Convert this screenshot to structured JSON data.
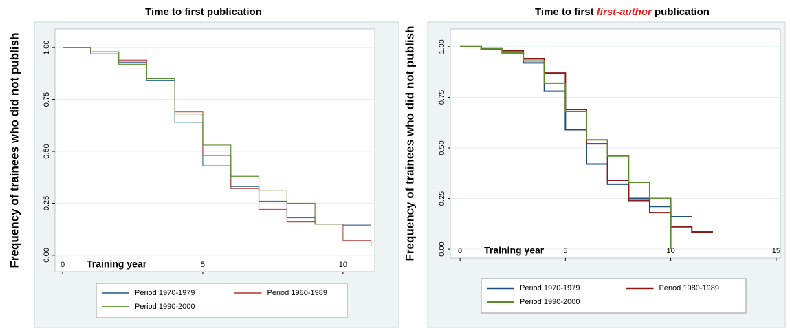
{
  "chart_data": [
    {
      "type": "step",
      "title": [
        "Time to first publication"
      ],
      "title_colors": [
        "#000000"
      ],
      "y_label": "Frequency of trainees who did not publish",
      "x_label": "Training year",
      "xlim": [
        -0.27,
        11.13
      ],
      "ylim": [
        -0.08,
        1.09
      ],
      "xticks": [
        0,
        5,
        10
      ],
      "yticks": [
        {
          "value": 0,
          "label": "0.00"
        },
        {
          "value": 0.25,
          "label": "0.25"
        },
        {
          "value": 0.5,
          "label": "0.50"
        },
        {
          "value": 0.75,
          "label": "0.75"
        },
        {
          "value": 1,
          "label": "1.00"
        }
      ],
      "grid": true,
      "series": [
        {
          "name": "Period 1970-1979",
          "color": "#3b6fa0",
          "x": [
            0,
            1,
            2,
            3,
            4,
            5,
            6,
            7,
            8,
            9,
            10,
            11
          ],
          "values": [
            1,
            0.97,
            0.93,
            0.84,
            0.64,
            0.43,
            0.33,
            0.26,
            0.18,
            0.15,
            0.145,
            0.145
          ]
        },
        {
          "name": "Period 1980-1989",
          "color": "#c0504d",
          "x": [
            0,
            1,
            2,
            3,
            4,
            5,
            6,
            7,
            8,
            9,
            10,
            11
          ],
          "values": [
            1,
            0.98,
            0.94,
            0.85,
            0.69,
            0.48,
            0.32,
            0.22,
            0.16,
            0.15,
            0.07,
            0.04
          ]
        },
        {
          "name": "Period 1990-2000",
          "color": "#5a8f29",
          "x": [
            0,
            1,
            2,
            3,
            4,
            5,
            6,
            7,
            8,
            9,
            10
          ],
          "values": [
            1,
            0.98,
            0.92,
            0.85,
            0.68,
            0.53,
            0.38,
            0.31,
            0.25,
            0.15,
            0.15
          ]
        }
      ]
    },
    {
      "type": "step",
      "title": [
        "Time to first ",
        "first-author",
        " publication"
      ],
      "title_colors": [
        "#000000",
        "#e02020",
        "#000000"
      ],
      "y_label": "Frequency of trainees who did not publish",
      "x_label": "Training year",
      "xlim": [
        -0.46,
        15.2
      ],
      "ylim": [
        -0.044,
        1.088
      ],
      "xticks": [
        0,
        5,
        10,
        15
      ],
      "yticks": [
        {
          "value": 0,
          "label": "0.00"
        },
        {
          "value": 0.25,
          "label": "0.25"
        },
        {
          "value": 0.5,
          "label": "0.50"
        },
        {
          "value": 0.75,
          "label": "0.75"
        },
        {
          "value": 1,
          "label": "1.00"
        }
      ],
      "grid": true,
      "series": [
        {
          "name": "Period 1970-1979",
          "color": "#1f4e79",
          "x": [
            0,
            1,
            2,
            3,
            4,
            5,
            6,
            7,
            8,
            9,
            10,
            11
          ],
          "values": [
            1,
            0.99,
            0.97,
            0.92,
            0.78,
            0.59,
            0.42,
            0.32,
            0.25,
            0.21,
            0.16,
            0.16
          ]
        },
        {
          "name": "Period 1980-1989",
          "color": "#8b1a1a",
          "x": [
            0,
            1,
            2,
            3,
            4,
            5,
            6,
            7,
            8,
            9,
            10,
            11,
            12
          ],
          "values": [
            1,
            0.99,
            0.98,
            0.94,
            0.87,
            0.69,
            0.52,
            0.34,
            0.24,
            0.18,
            0.11,
            0.085,
            0.085
          ]
        },
        {
          "name": "Period 1990-2000",
          "color": "#5a8a2a",
          "x": [
            0,
            1,
            2,
            3,
            4,
            5,
            6,
            7,
            8,
            9,
            10
          ],
          "values": [
            1,
            0.99,
            0.97,
            0.93,
            0.82,
            0.68,
            0.54,
            0.46,
            0.33,
            0.25,
            0
          ]
        }
      ]
    }
  ]
}
